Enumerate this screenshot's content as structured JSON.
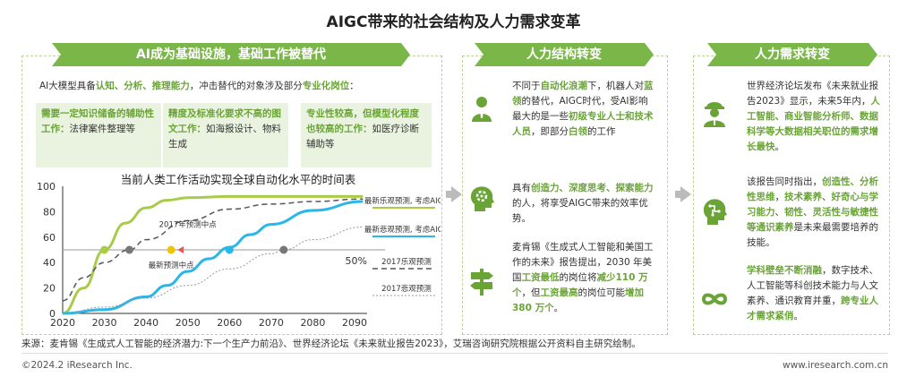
{
  "title": "AIGC带来的社会结构及人力需求变革",
  "left": {
    "banner": "AI成为基础设施，基础工作被替代",
    "intro": [
      "AI大模型具备",
      "认知、分析、推理能力",
      "，冲击替代的对象涉及部分",
      "专业化岗位",
      "："
    ],
    "cols": [
      {
        "hl": "需要一定知识储备的辅助性工作：",
        "text": "法律案件整理等"
      },
      {
        "hl": "精度及标准化要求不高的图文工作：",
        "text": "如海报设计、物料生成"
      },
      {
        "hl": "专业性较高，但模型化程度也较高的工作：",
        "text": "如医疗诊断辅助等"
      }
    ]
  },
  "chart_data": {
    "type": "line",
    "title": "当前人类工作活动实现全球自动化水平的时间表",
    "x_ticks": [
      "2020",
      "2030",
      "2040",
      "2050",
      "2060",
      "2070",
      "2080",
      "2090"
    ],
    "y_ticks": [
      "0",
      "20",
      "40",
      "60",
      "80",
      "100"
    ],
    "xlim": [
      2020,
      2093
    ],
    "ylim": [
      0,
      100
    ],
    "threshold_label": "50%",
    "series": [
      {
        "name": "最新乐观预测, 考虑AIGC",
        "color": "#a8cc4a",
        "x": [
          2020,
          2025,
          2030,
          2035,
          2040,
          2045,
          2050,
          2060,
          2070,
          2080,
          2092
        ],
        "y": [
          0,
          20,
          50,
          71,
          83,
          89,
          91,
          92,
          92,
          92,
          92
        ]
      },
      {
        "name": "最新悲观预测, 考虑AIGC",
        "color": "#29b6e8",
        "x": [
          2020,
          2030,
          2040,
          2045,
          2050,
          2055,
          2060,
          2065,
          2070,
          2080,
          2092
        ],
        "y": [
          0,
          3,
          13,
          22,
          33,
          43,
          52,
          62,
          70,
          81,
          88
        ]
      },
      {
        "name": "2017乐观预测",
        "color": "#555",
        "x": [
          2020,
          2025,
          2030,
          2036,
          2040,
          2050,
          2060,
          2070,
          2080,
          2092
        ],
        "y": [
          10,
          28,
          40,
          50,
          58,
          73,
          82,
          86,
          88,
          90
        ]
      },
      {
        "name": "2017悲观预测",
        "color": "#999",
        "x": [
          2020,
          2030,
          2040,
          2050,
          2060,
          2070,
          2073,
          2080,
          2092
        ],
        "y": [
          0,
          5,
          12,
          22,
          35,
          47,
          50,
          58,
          68
        ]
      }
    ],
    "annotations": [
      "2017年预测中点",
      "最新预测中点"
    ],
    "midpoints": [
      {
        "x": 2030,
        "color": "#a8cc4a"
      },
      {
        "x": 2036,
        "color": "#777"
      },
      {
        "x": 2046,
        "color": "#f0c400"
      },
      {
        "x": 2060,
        "color": "#29b6e8"
      },
      {
        "x": 2073,
        "color": "#777"
      }
    ]
  },
  "middle": {
    "banner": "人力结构转变",
    "items": [
      {
        "icon": "person-icon",
        "parts": [
          "不同于",
          "自动化浪潮",
          "下，机器人对",
          "蓝领",
          "的替代，AIGC时代，受AI影响最大的是一些",
          "初级专业人士和技术人员",
          "，即部分",
          "白领",
          "的工作"
        ]
      },
      {
        "icon": "brain-gear-icon",
        "parts": [
          "具有",
          "创造力、深度思考、探索能力",
          "的人，将享受AIGC带来的效率优势。"
        ]
      },
      {
        "icon": "signpost-icon",
        "parts": [
          "麦肯锡《生成式人工智能和美国工作的未来》报告提出，2030 年美国",
          "工资最低",
          "的岗位将",
          "减少110 万个",
          "，但",
          "工资最高",
          "的岗位可能",
          "增加 380 万个",
          "。"
        ]
      }
    ]
  },
  "right": {
    "banner": "人力需求转变",
    "items": [
      {
        "icon": "worker-icon",
        "parts": [
          "世界经济论坛发布《未来就业报告2023》显示，未来5年内，",
          "人工智能、商业智能分析师、数据科学等大数据相关职位的需求增长最快",
          "。"
        ]
      },
      {
        "icon": "head-circuit-icon",
        "parts": [
          "该报告同时指出，",
          "创造性、分析性思维",
          "，",
          "技术素养",
          "、",
          "好奇心与学习能力",
          "、",
          "韧性",
          "、",
          "灵活性与敏捷性等通识素养",
          "是未来最需要培养的技能。"
        ]
      },
      {
        "icon": "infinity-icon",
        "parts": [
          "学科壁垒不断消融",
          "，数字技术、人工智能等科创技术能力与人文素养、通识教育并重，",
          "跨专业人才需求紧俏",
          "。"
        ]
      }
    ]
  },
  "source": "来源：麦肯锡《生成式人工智能的经济潜力:下一个生产力前沿》、世界经济论坛《未来就业报告2023》，艾瑞咨询研究院根据公开资料自主研究绘制。",
  "copyright": "©2024.2 iResearch Inc.",
  "website": "www.iresearch.com.cn",
  "colors": {
    "green": "#7ab648",
    "highlight": "#6aa437",
    "box_bg": "#eaf3df",
    "blue": "#29b6e8"
  }
}
